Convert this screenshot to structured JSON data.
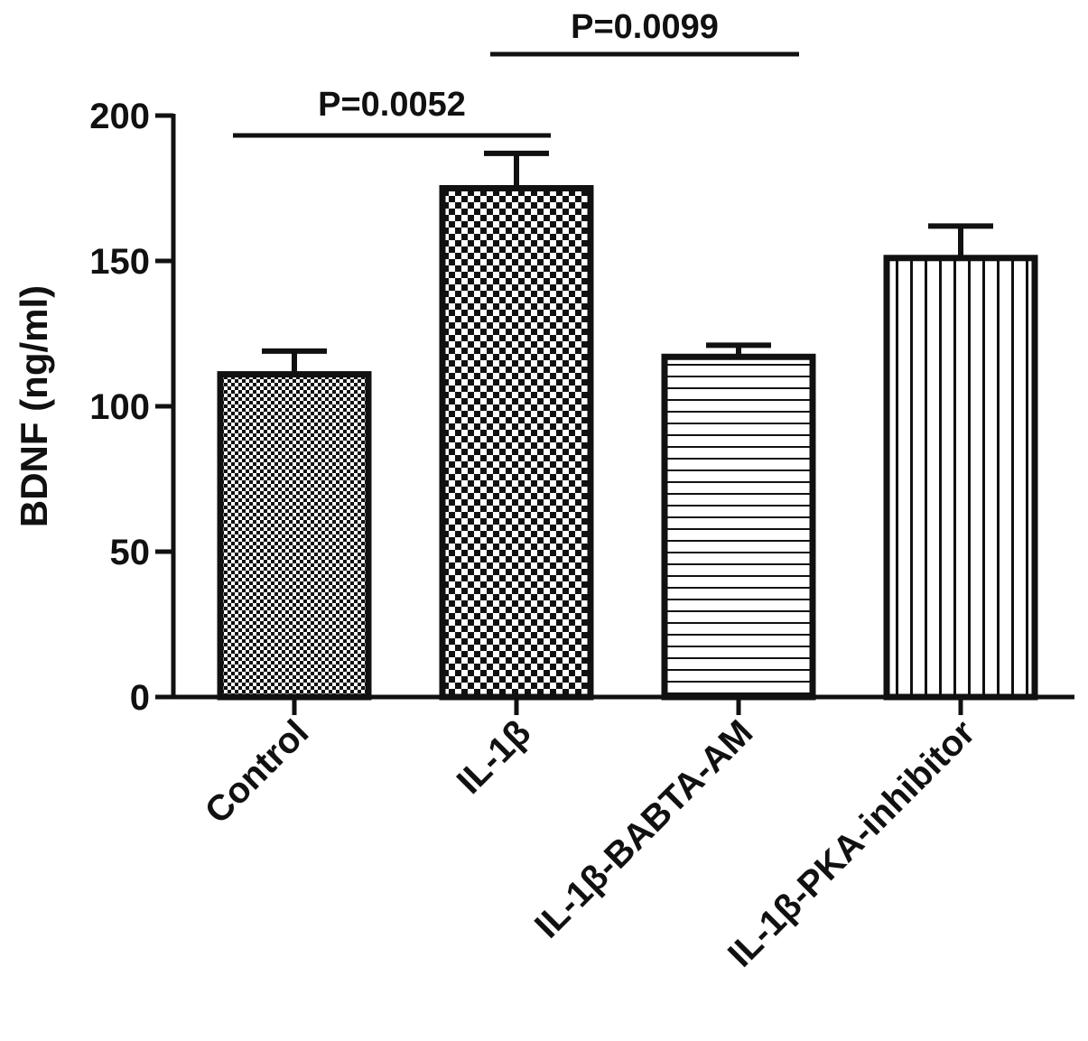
{
  "chart_data": {
    "type": "bar",
    "ylabel": "BDNF (ng/ml)",
    "xlabel": "",
    "ylim": [
      0,
      200
    ],
    "yticks": [
      0,
      50,
      100,
      150,
      200
    ],
    "categories": [
      "Control",
      "IL-1β",
      "IL-1β-BABTA-AM",
      "IL-1β-PKA-inhibitor"
    ],
    "values": [
      111,
      175,
      117,
      151
    ],
    "errors": [
      8,
      12,
      4,
      11
    ],
    "patterns": [
      "fine-checker",
      "coarse-checker",
      "horizontal-lines",
      "vertical-lines"
    ],
    "significance": [
      {
        "from": 0,
        "to": 1,
        "label": "P=0.0052"
      },
      {
        "from": 1,
        "to": 2,
        "label": "P=0.0099"
      }
    ],
    "grid": false,
    "legend": "none"
  },
  "colors": {
    "ink": "#111111",
    "background": "#ffffff"
  }
}
